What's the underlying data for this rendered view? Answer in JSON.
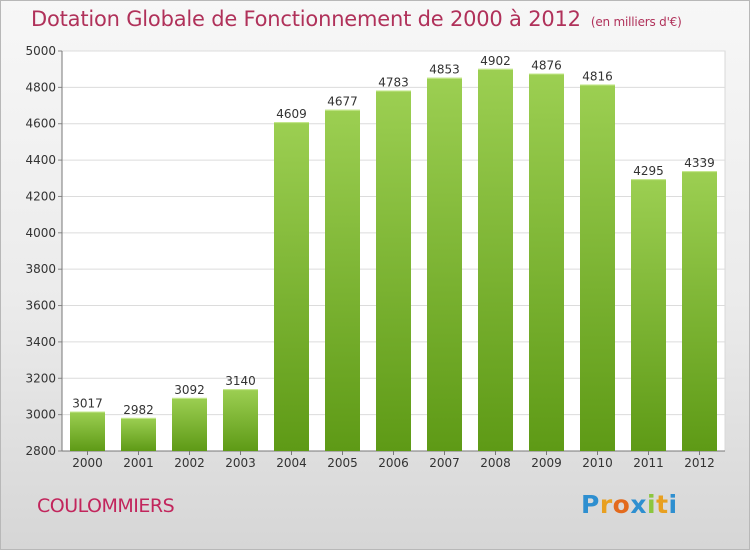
{
  "title": "Dotation Globale de Fonctionnement de 2000 à 2012",
  "unit": "(en milliers d'€)",
  "commune": "COULOMMIERS",
  "logo": {
    "p": "P",
    "r": "r",
    "o": "o",
    "x": "x",
    "i1": "i",
    "t": "t",
    "i2": "i"
  },
  "colors": {
    "bar_light": "#9ccf52",
    "bar_dark": "#5e9a16",
    "title": "#b0315a"
  },
  "chart_data": {
    "type": "bar",
    "title": "Dotation Globale de Fonctionnement de 2000 à 2012",
    "categories": [
      "2000",
      "2001",
      "2002",
      "2003",
      "2004",
      "2005",
      "2006",
      "2007",
      "2008",
      "2009",
      "2010",
      "2011",
      "2012"
    ],
    "values": [
      3017,
      2982,
      3092,
      3140,
      4609,
      4677,
      4783,
      4853,
      4902,
      4876,
      4816,
      4295,
      4339
    ],
    "ylim": [
      2800,
      5000
    ],
    "yticks": [
      2800,
      3000,
      3200,
      3400,
      3600,
      3800,
      4000,
      4200,
      4400,
      4600,
      4800,
      5000
    ],
    "grid": true
  }
}
